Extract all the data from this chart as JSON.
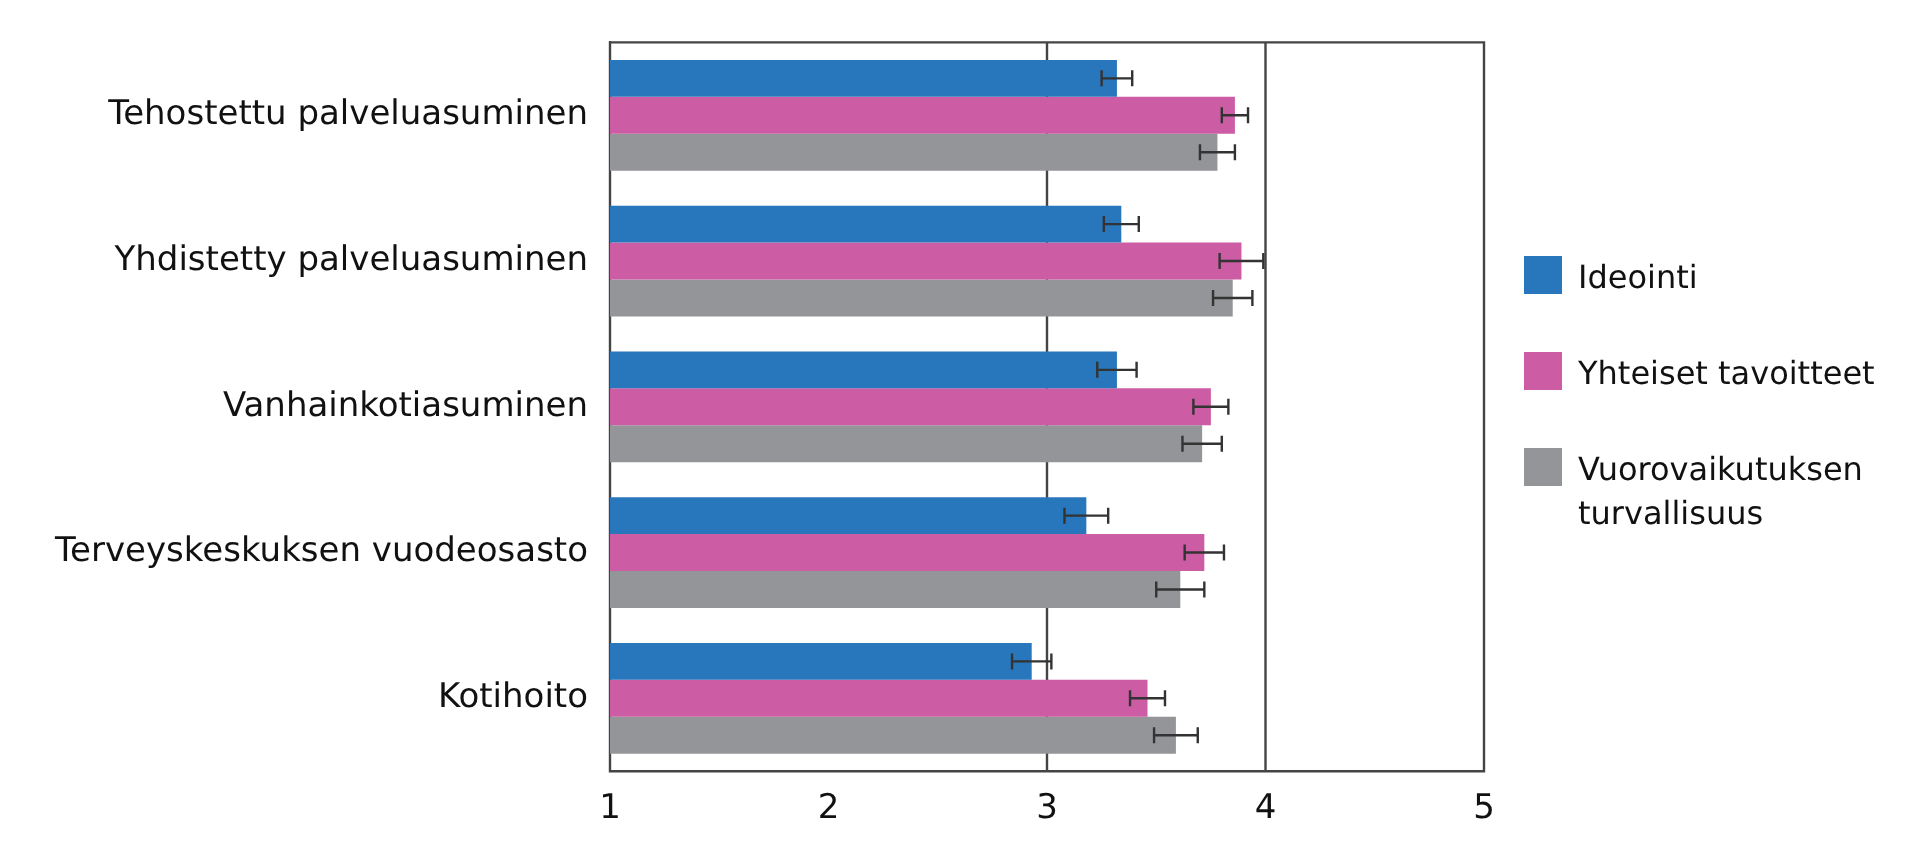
{
  "chart_data": {
    "type": "bar",
    "orientation": "horizontal",
    "categories": [
      "Tehostettu palveluasuminen",
      "Yhdistetty palveluasuminen",
      "Vanhainkotiasuminen",
      "Terveyskeskuksen vuodeosasto",
      "Kotihoito"
    ],
    "series": [
      {
        "name": "Ideointi",
        "color": "#2876bc",
        "values": [
          3.32,
          3.34,
          3.32,
          3.18,
          2.93
        ],
        "errors": [
          0.07,
          0.08,
          0.09,
          0.1,
          0.09
        ]
      },
      {
        "name": "Yhteiset tavoitteet",
        "color": "#cc5ca4",
        "values": [
          3.86,
          3.89,
          3.75,
          3.72,
          3.46
        ],
        "errors": [
          0.06,
          0.1,
          0.08,
          0.09,
          0.08
        ]
      },
      {
        "name": "Vuorovaikutuksen turvallisuus",
        "color": "#949598",
        "values": [
          3.78,
          3.85,
          3.71,
          3.61,
          3.59
        ],
        "errors": [
          0.08,
          0.09,
          0.09,
          0.11,
          0.1
        ]
      }
    ],
    "xlim": [
      1,
      5
    ],
    "xticks": [
      1,
      2,
      3,
      4,
      5
    ],
    "grid": false,
    "legend": "right",
    "ref_lines": [
      {
        "axis": "x",
        "value": 3,
        "color": "#444444"
      },
      {
        "axis": "x",
        "value": 4,
        "color": "#444444"
      }
    ]
  }
}
